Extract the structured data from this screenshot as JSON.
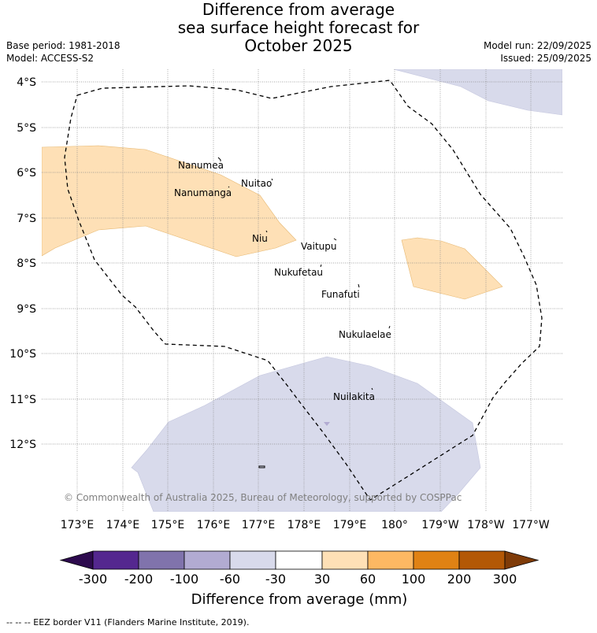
{
  "title": {
    "line1": "Difference from average",
    "line2": "sea surface height forecast for",
    "line3": "October 2025"
  },
  "meta": {
    "base_period": "Base period: 1981-2018",
    "model": "Model: ACCESS-S2",
    "model_run": "Model run: 22/09/2025",
    "issued": "Issued: 25/09/2025"
  },
  "map": {
    "lat_labels": [
      "4°S",
      "5°S",
      "6°S",
      "7°S",
      "8°S",
      "9°S",
      "10°S",
      "11°S",
      "12°S"
    ],
    "lon_labels": [
      "173°E",
      "174°E",
      "175°E",
      "176°E",
      "177°E",
      "178°E",
      "179°E",
      "180°",
      "179°W",
      "178°W",
      "177°W"
    ],
    "islands": [
      {
        "name": "Nanumea"
      },
      {
        "name": "Nuitao"
      },
      {
        "name": "Nanumanga"
      },
      {
        "name": "Niu"
      },
      {
        "name": "Vaitupu"
      },
      {
        "name": "Nukufetau"
      },
      {
        "name": "Funafuti"
      },
      {
        "name": "Nukulaelae"
      },
      {
        "name": "Nuilakita"
      }
    ],
    "copyright": "© Commonwealth of Australia 2025, Bureau of Meteorology, supported by COSPPac"
  },
  "colorbar": {
    "title": "Difference from average (mm)",
    "ticks": [
      "-300",
      "-200",
      "-100",
      "-60",
      "-30",
      "30",
      "60",
      "100",
      "200",
      "300"
    ],
    "colors": {
      "below": "#2d0a4e",
      "c1": "#54278f",
      "c2": "#8073ac",
      "c3": "#b2abd2",
      "c4": "#d8daeb",
      "c5": "#ffffff",
      "c6": "#fee0b6",
      "c7": "#fdb863",
      "c8": "#e08214",
      "c9": "#b35806",
      "above": "#7f3b08"
    }
  },
  "footer": {
    "text": "--  --  -- EEZ border V11 (Flanders Marine Institute, 2019)."
  }
}
